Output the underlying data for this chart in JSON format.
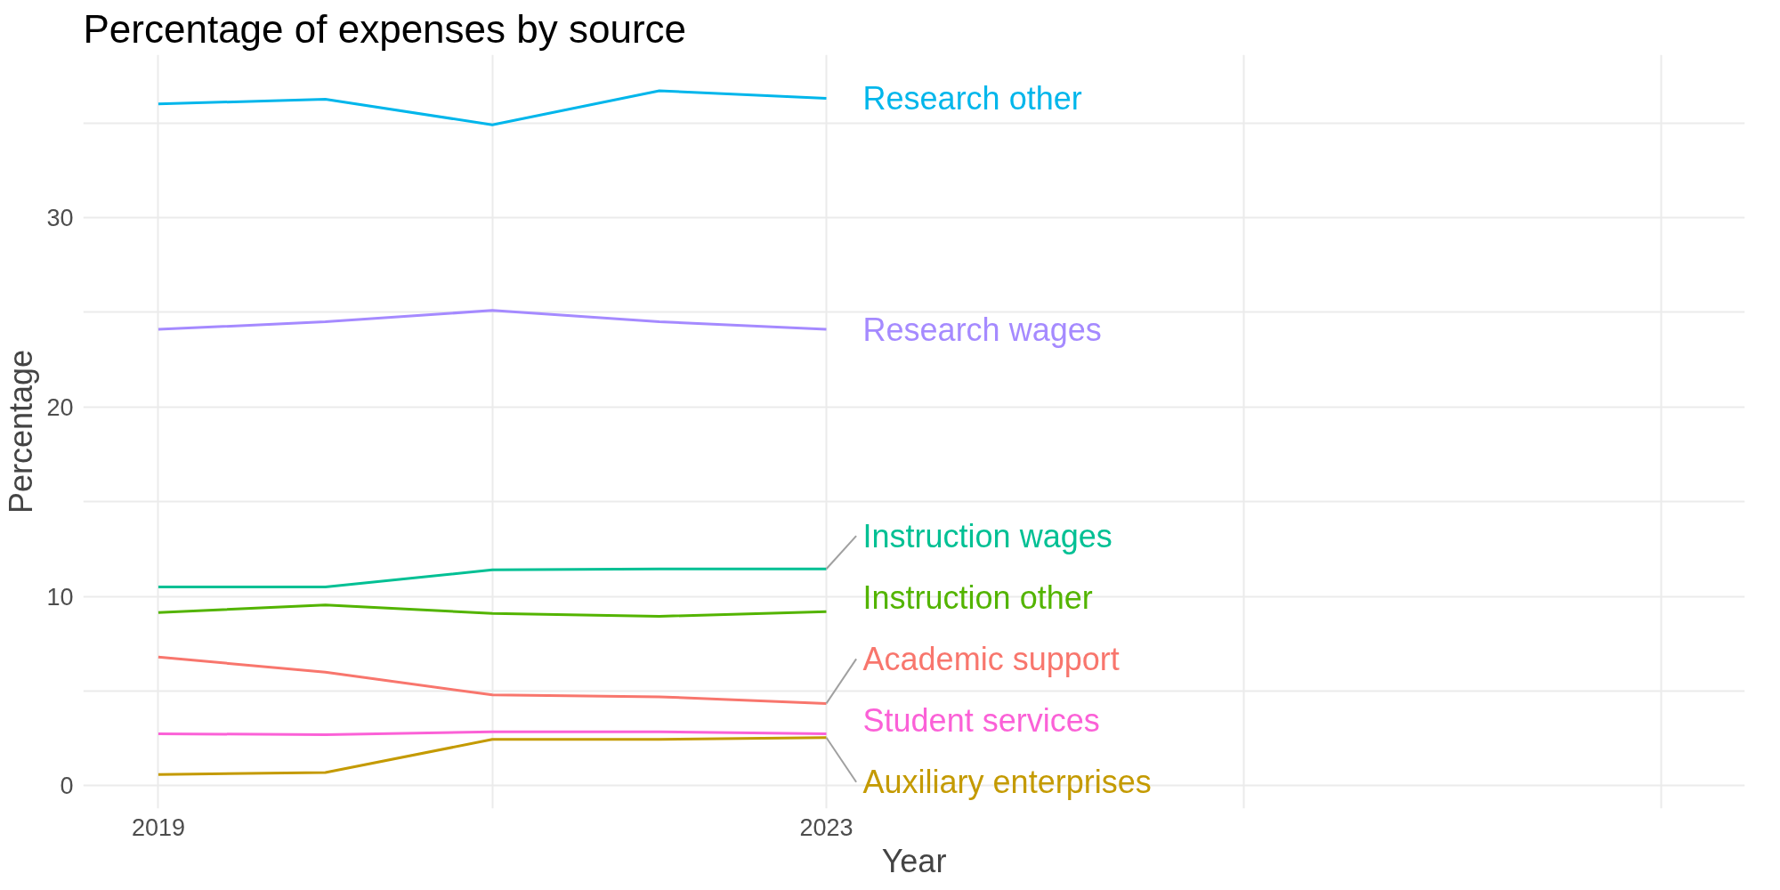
{
  "chart_data": {
    "type": "line",
    "title": "Percentage of expenses by source",
    "xlabel": "Year",
    "ylabel": "Percentage",
    "x": [
      2019,
      2020,
      2021,
      2022,
      2023
    ],
    "series": [
      {
        "name": "Research other",
        "color": "#00b6eb",
        "values": [
          36.0,
          36.25,
          34.9,
          36.7,
          36.3
        ]
      },
      {
        "name": "Research wages",
        "color": "#a58aff",
        "values": [
          24.1,
          24.5,
          25.1,
          24.5,
          24.1
        ]
      },
      {
        "name": "Instruction wages",
        "color": "#00c094",
        "values": [
          10.5,
          10.5,
          11.4,
          11.45,
          11.45
        ]
      },
      {
        "name": "Instruction other",
        "color": "#53b400",
        "values": [
          9.15,
          9.55,
          9.1,
          8.95,
          9.2
        ]
      },
      {
        "name": "Academic support",
        "color": "#f8766d",
        "values": [
          6.8,
          6.0,
          4.8,
          4.7,
          4.35
        ]
      },
      {
        "name": "Student services",
        "color": "#fb61d7",
        "values": [
          2.75,
          2.7,
          2.85,
          2.85,
          2.75
        ]
      },
      {
        "name": "Auxiliary enterprises",
        "color": "#c49a00",
        "values": [
          0.6,
          0.7,
          2.45,
          2.45,
          2.55
        ]
      }
    ],
    "xlim": [
      2018.55,
      2028.5
    ],
    "xticks": [
      2019,
      {
        "value": 2021,
        "label": null
      },
      2023,
      {
        "value": 2025.5,
        "label": null
      },
      {
        "value": 2028,
        "label": null
      }
    ],
    "ylim": [
      -1.2,
      38.6
    ],
    "yticks": [
      0,
      {
        "value": 5,
        "label": null
      },
      10,
      {
        "value": 15,
        "label": null
      },
      20,
      {
        "value": 25,
        "label": null
      },
      30,
      {
        "value": 35,
        "label": null
      }
    ],
    "grid": true,
    "legend": false,
    "line_style": "solid",
    "marker": "none"
  }
}
